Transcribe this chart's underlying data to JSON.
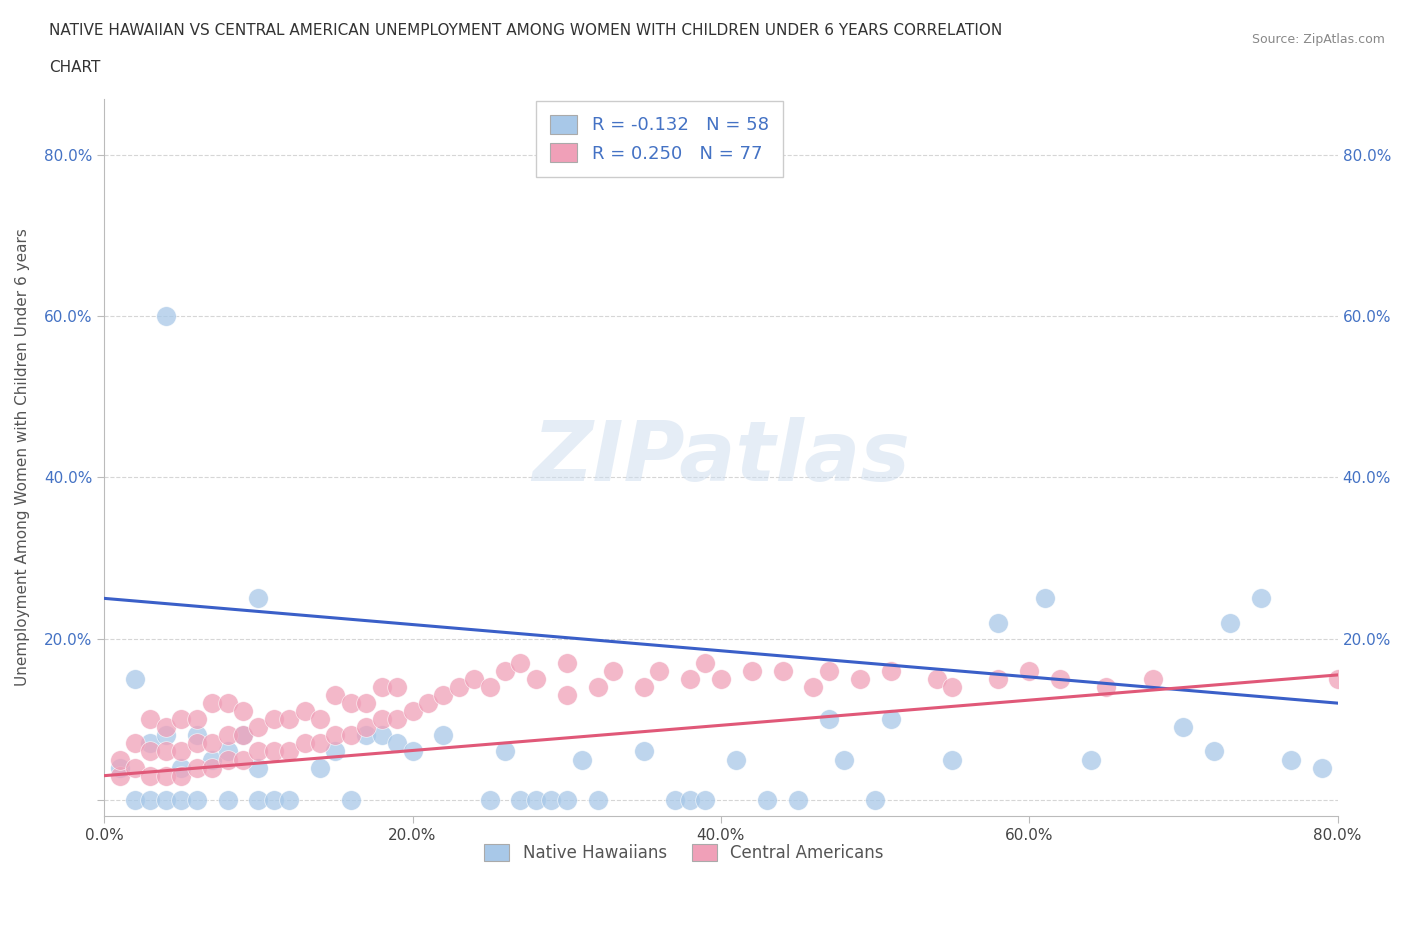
{
  "title_line1": "NATIVE HAWAIIAN VS CENTRAL AMERICAN UNEMPLOYMENT AMONG WOMEN WITH CHILDREN UNDER 6 YEARS CORRELATION",
  "title_line2": "CHART",
  "source": "Source: ZipAtlas.com",
  "ylabel": "Unemployment Among Women with Children Under 6 years",
  "xlim": [
    0,
    0.8
  ],
  "ylim": [
    -0.02,
    0.87
  ],
  "xticks": [
    0.0,
    0.2,
    0.4,
    0.6,
    0.8
  ],
  "yticks": [
    0.0,
    0.2,
    0.4,
    0.6,
    0.8
  ],
  "xtick_labels": [
    "0.0%",
    "20.0%",
    "40.0%",
    "60.0%",
    "80.0%"
  ],
  "left_ytick_labels": [
    "",
    "20.0%",
    "40.0%",
    "60.0%",
    "80.0%"
  ],
  "right_ytick_labels": [
    "20.0%",
    "40.0%",
    "60.0%",
    "80.0%"
  ],
  "right_yticks": [
    0.2,
    0.4,
    0.6,
    0.8
  ],
  "watermark": "ZIPatlas",
  "blue_color": "#a8c8e8",
  "pink_color": "#f0a0b8",
  "blue_line_color": "#3a5fc8",
  "pink_line_color": "#e05878",
  "blue_R": -0.132,
  "blue_N": 58,
  "pink_R": 0.25,
  "pink_N": 77,
  "legend_label_blue": "Native Hawaiians",
  "legend_label_pink": "Central Americans",
  "blue_line_y0": 0.25,
  "blue_line_y1": 0.12,
  "pink_line_y0": 0.03,
  "pink_line_y1": 0.155,
  "blue_scatter_x": [
    0.01,
    0.02,
    0.02,
    0.03,
    0.03,
    0.04,
    0.04,
    0.05,
    0.05,
    0.06,
    0.06,
    0.07,
    0.08,
    0.08,
    0.09,
    0.1,
    0.1,
    0.11,
    0.12,
    0.14,
    0.15,
    0.16,
    0.17,
    0.18,
    0.19,
    0.2,
    0.22,
    0.25,
    0.26,
    0.27,
    0.28,
    0.29,
    0.3,
    0.31,
    0.32,
    0.35,
    0.37,
    0.38,
    0.39,
    0.41,
    0.43,
    0.45,
    0.47,
    0.48,
    0.5,
    0.51,
    0.55,
    0.58,
    0.61,
    0.64,
    0.7,
    0.72,
    0.73,
    0.75,
    0.77,
    0.79,
    0.04,
    0.1
  ],
  "blue_scatter_y": [
    0.04,
    0.15,
    0.0,
    0.07,
    0.0,
    0.08,
    0.0,
    0.04,
    0.0,
    0.08,
    0.0,
    0.05,
    0.06,
    0.0,
    0.08,
    0.04,
    0.0,
    0.0,
    0.0,
    0.04,
    0.06,
    0.0,
    0.08,
    0.08,
    0.07,
    0.06,
    0.08,
    0.0,
    0.06,
    0.0,
    0.0,
    0.0,
    0.0,
    0.05,
    0.0,
    0.06,
    0.0,
    0.0,
    0.0,
    0.05,
    0.0,
    0.0,
    0.1,
    0.05,
    0.0,
    0.1,
    0.05,
    0.22,
    0.25,
    0.05,
    0.09,
    0.06,
    0.22,
    0.25,
    0.05,
    0.04,
    0.6,
    0.25
  ],
  "pink_scatter_x": [
    0.01,
    0.01,
    0.02,
    0.02,
    0.03,
    0.03,
    0.03,
    0.04,
    0.04,
    0.04,
    0.05,
    0.05,
    0.05,
    0.06,
    0.06,
    0.06,
    0.07,
    0.07,
    0.07,
    0.08,
    0.08,
    0.08,
    0.09,
    0.09,
    0.09,
    0.1,
    0.1,
    0.11,
    0.11,
    0.12,
    0.12,
    0.13,
    0.13,
    0.14,
    0.14,
    0.15,
    0.15,
    0.16,
    0.16,
    0.17,
    0.17,
    0.18,
    0.18,
    0.19,
    0.19,
    0.2,
    0.21,
    0.22,
    0.23,
    0.24,
    0.25,
    0.26,
    0.27,
    0.28,
    0.3,
    0.3,
    0.32,
    0.33,
    0.35,
    0.36,
    0.38,
    0.39,
    0.4,
    0.42,
    0.44,
    0.46,
    0.47,
    0.49,
    0.51,
    0.54,
    0.55,
    0.58,
    0.6,
    0.62,
    0.65,
    0.68,
    0.8
  ],
  "pink_scatter_y": [
    0.03,
    0.05,
    0.04,
    0.07,
    0.03,
    0.06,
    0.1,
    0.03,
    0.06,
    0.09,
    0.03,
    0.06,
    0.1,
    0.04,
    0.07,
    0.1,
    0.04,
    0.07,
    0.12,
    0.05,
    0.08,
    0.12,
    0.05,
    0.08,
    0.11,
    0.06,
    0.09,
    0.06,
    0.1,
    0.06,
    0.1,
    0.07,
    0.11,
    0.07,
    0.1,
    0.08,
    0.13,
    0.08,
    0.12,
    0.09,
    0.12,
    0.1,
    0.14,
    0.1,
    0.14,
    0.11,
    0.12,
    0.13,
    0.14,
    0.15,
    0.14,
    0.16,
    0.17,
    0.15,
    0.13,
    0.17,
    0.14,
    0.16,
    0.14,
    0.16,
    0.15,
    0.17,
    0.15,
    0.16,
    0.16,
    0.14,
    0.16,
    0.15,
    0.16,
    0.15,
    0.14,
    0.15,
    0.16,
    0.15,
    0.14,
    0.15,
    0.15
  ]
}
